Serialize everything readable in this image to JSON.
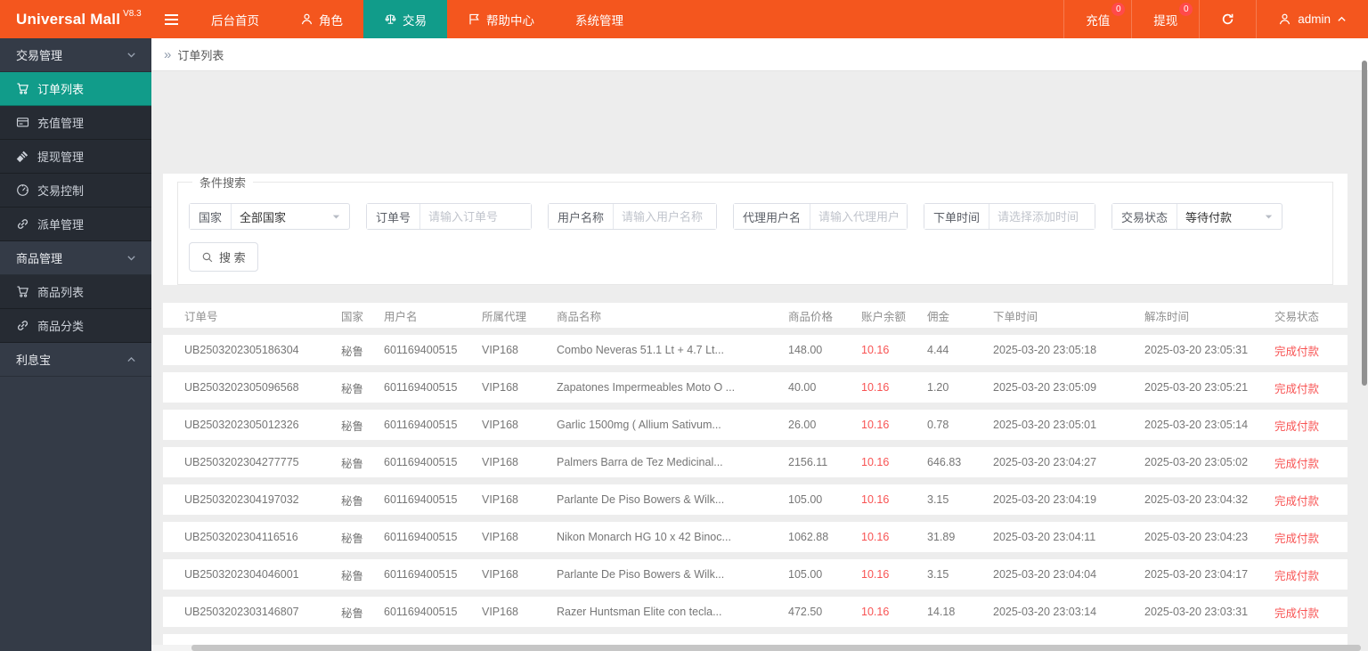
{
  "colors": {
    "orange": "#F4561E",
    "teal": "#119C8A",
    "red": "#F85353",
    "badge": "#FF4A4A"
  },
  "topbar": {
    "brand": "Universal Mall",
    "version": "V8.3",
    "menu": [
      {
        "icon": null,
        "label": "后台首页",
        "active": false
      },
      {
        "icon": "user",
        "label": "角色",
        "active": false
      },
      {
        "icon": "scale",
        "label": "交易",
        "active": true
      },
      {
        "icon": "flag",
        "label": "帮助中心",
        "active": false
      },
      {
        "icon": null,
        "label": "系统管理",
        "active": false
      }
    ],
    "right": {
      "recharge_label": "充值",
      "recharge_badge": "0",
      "withdraw_label": "提现",
      "withdraw_badge": "0",
      "username": "admin"
    }
  },
  "sidebar": {
    "groups": [
      {
        "label": "交易管理",
        "chevron": "down",
        "items": [
          {
            "icon": "cart",
            "label": "订单列表",
            "active": true
          },
          {
            "icon": "card",
            "label": "充值管理",
            "active": false
          },
          {
            "icon": "gavel",
            "label": "提现管理",
            "active": false
          },
          {
            "icon": "gauge",
            "label": "交易控制",
            "active": false
          },
          {
            "icon": "link",
            "label": "派单管理",
            "active": false
          }
        ]
      },
      {
        "label": "商品管理",
        "chevron": "down",
        "items": [
          {
            "icon": "cart",
            "label": "商品列表",
            "active": false
          },
          {
            "icon": "link",
            "label": "商品分类",
            "active": false
          }
        ]
      },
      {
        "label": "利息宝",
        "chevron": "up",
        "items": []
      }
    ]
  },
  "breadcrumb": {
    "icon": "»",
    "label": "订单列表"
  },
  "search": {
    "legend": "条件搜索",
    "fields": [
      {
        "label": "国家",
        "type": "select",
        "value": "全部国家"
      },
      {
        "label": "订单号",
        "type": "input",
        "placeholder": "请输入订单号"
      },
      {
        "label": "用户名称",
        "type": "input",
        "placeholder": "请输入用户名称"
      },
      {
        "label": "代理用户名",
        "type": "input",
        "placeholder": "请输入代理用户名"
      },
      {
        "label": "下单时间",
        "type": "input",
        "placeholder": "请选择添加时间"
      },
      {
        "label": "交易状态",
        "type": "select",
        "value": "等待付款"
      }
    ],
    "button_label": "搜 索"
  },
  "table": {
    "columns": [
      "订单号",
      "国家",
      "用户名",
      "所属代理",
      "商品名称",
      "商品价格",
      "账户余额",
      "佣金",
      "下单时间",
      "解冻时间",
      "交易状态"
    ],
    "rows": [
      [
        "UB2503202305186304",
        "秘鲁",
        "601169400515",
        "VIP168",
        "Combo Neveras 51.1 Lt + 4.7 Lt...",
        "148.00",
        "10.16",
        "4.44",
        "2025-03-20 23:05:18",
        "2025-03-20 23:05:31",
        "完成付款"
      ],
      [
        "UB2503202305096568",
        "秘鲁",
        "601169400515",
        "VIP168",
        "Zapatones Impermeables Moto O ...",
        "40.00",
        "10.16",
        "1.20",
        "2025-03-20 23:05:09",
        "2025-03-20 23:05:21",
        "完成付款"
      ],
      [
        "UB2503202305012326",
        "秘鲁",
        "601169400515",
        "VIP168",
        "Garlic 1500mg ( Allium Sativum...",
        "26.00",
        "10.16",
        "0.78",
        "2025-03-20 23:05:01",
        "2025-03-20 23:05:14",
        "完成付款"
      ],
      [
        "UB2503202304277775",
        "秘鲁",
        "601169400515",
        "VIP168",
        "Palmers Barra de Tez Medicinal...",
        "2156.11",
        "10.16",
        "646.83",
        "2025-03-20 23:04:27",
        "2025-03-20 23:05:02",
        "完成付款"
      ],
      [
        "UB2503202304197032",
        "秘鲁",
        "601169400515",
        "VIP168",
        "Parlante De Piso Bowers & Wilk...",
        "105.00",
        "10.16",
        "3.15",
        "2025-03-20 23:04:19",
        "2025-03-20 23:04:32",
        "完成付款"
      ],
      [
        "UB2503202304116516",
        "秘鲁",
        "601169400515",
        "VIP168",
        "Nikon Monarch HG 10 x 42 Binoc...",
        "1062.88",
        "10.16",
        "31.89",
        "2025-03-20 23:04:11",
        "2025-03-20 23:04:23",
        "完成付款"
      ],
      [
        "UB2503202304046001",
        "秘鲁",
        "601169400515",
        "VIP168",
        "Parlante De Piso Bowers & Wilk...",
        "105.00",
        "10.16",
        "3.15",
        "2025-03-20 23:04:04",
        "2025-03-20 23:04:17",
        "完成付款"
      ],
      [
        "UB2503202303146807",
        "秘鲁",
        "601169400515",
        "VIP168",
        "Razer Huntsman Elite con tecla...",
        "472.50",
        "10.16",
        "14.18",
        "2025-03-20 23:03:14",
        "2025-03-20 23:03:31",
        "完成付款"
      ]
    ],
    "red_columns": [
      6,
      10
    ]
  }
}
